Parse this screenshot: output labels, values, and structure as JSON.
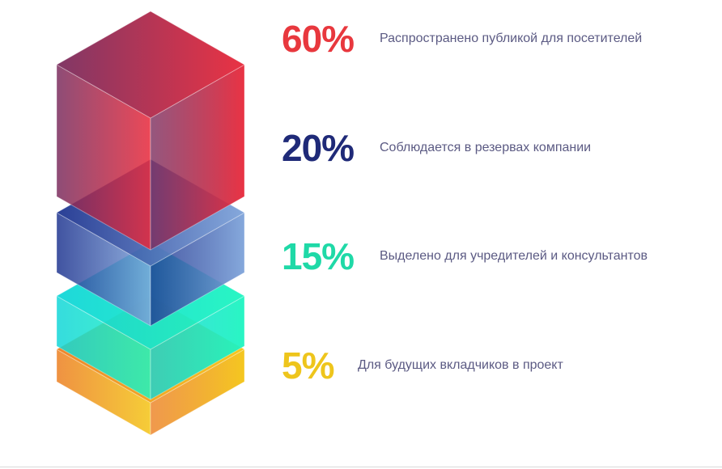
{
  "chart_data": {
    "type": "stacked-3d-layers",
    "series": [
      {
        "value": 60,
        "label": "60%",
        "description": "Распространено публикой для посетителей",
        "color": "#e8383e",
        "gradient": [
          "#7a2d5e",
          "#e8283a"
        ]
      },
      {
        "value": 20,
        "label": "20%",
        "description": "Соблюдается в резервах компании",
        "color": "#1f2a78",
        "gradient": [
          "#1f3590",
          "#7fa4da"
        ]
      },
      {
        "value": 15,
        "label": "15%",
        "description": "Выделено для учредителей и консультантов",
        "color": "#1fd9a7",
        "gradient": [
          "#12d6d8",
          "#1ef5c0"
        ]
      },
      {
        "value": 5,
        "label": "5%",
        "description": "Для будущих вкладчиков в проект",
        "color": "#eec51c",
        "gradient": [
          "#ec7f21",
          "#f4c414"
        ]
      }
    ]
  }
}
